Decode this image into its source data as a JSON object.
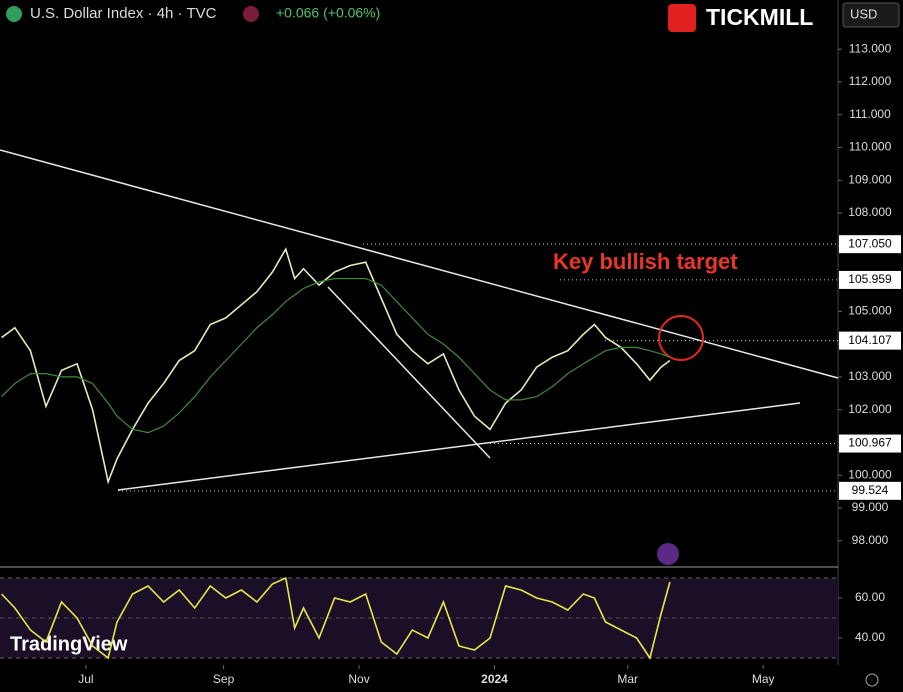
{
  "header": {
    "symbol": "U.S. Dollar Index · 4h · TVC",
    "change": "+0.066 (+0.06%)",
    "brand": "TICKMILL",
    "currency": "USD",
    "logo": "TradingView"
  },
  "chart_data": [
    {
      "type": "line",
      "annotation": "Key bullish target",
      "x": [
        -38,
        -32,
        -25,
        -18,
        -11,
        -4,
        3,
        10,
        14,
        21,
        28,
        35,
        42,
        49,
        56,
        63,
        70,
        77,
        84,
        90,
        94,
        98,
        105,
        112,
        119,
        126,
        133,
        140,
        147,
        154,
        161,
        168,
        175,
        182,
        189,
        196,
        203,
        210,
        217,
        224,
        229,
        234,
        241,
        248,
        254,
        259,
        263
      ],
      "series": [
        {
          "color": "#e2ecb4",
          "values": [
            104.2,
            104.5,
            103.8,
            102.1,
            103.2,
            103.4,
            102.0,
            99.8,
            100.5,
            101.4,
            102.2,
            102.8,
            103.5,
            103.8,
            104.6,
            104.8,
            105.2,
            105.6,
            106.2,
            106.9,
            106.0,
            106.3,
            105.8,
            106.2,
            106.4,
            106.5,
            105.4,
            104.3,
            103.8,
            103.4,
            103.7,
            102.6,
            101.8,
            101.4,
            102.2,
            102.6,
            103.3,
            103.6,
            103.8,
            104.3,
            104.6,
            104.2,
            103.9,
            103.4,
            102.9,
            103.3,
            103.5
          ]
        },
        {
          "color": "#3f8a3a",
          "values": [
            102.4,
            102.8,
            103.1,
            103.1,
            103.0,
            103.0,
            102.8,
            102.2,
            101.8,
            101.4,
            101.3,
            101.5,
            101.9,
            102.4,
            103.0,
            103.5,
            104.0,
            104.5,
            104.9,
            105.3,
            105.5,
            105.7,
            105.9,
            106.0,
            106.0,
            106.0,
            105.8,
            105.3,
            104.8,
            104.3,
            104.0,
            103.6,
            103.1,
            102.6,
            102.3,
            102.3,
            102.4,
            102.7,
            103.1,
            103.4,
            103.6,
            103.8,
            103.9,
            103.9,
            103.8,
            103.7,
            103.6
          ]
        }
      ],
      "levels": [
        {
          "value": 107.05,
          "label": "107.050"
        },
        {
          "value": 105.959,
          "label": "105.959"
        },
        {
          "value": 104.107,
          "label": "104.107"
        },
        {
          "value": 100.967,
          "label": "100.967"
        },
        {
          "value": 99.524,
          "label": "99.524"
        }
      ],
      "xlim": [
        -38.7,
        338.7
      ],
      "xticks": [
        {
          "value": 0,
          "label": "Jul"
        },
        {
          "value": 62,
          "label": "Sep"
        },
        {
          "value": 123,
          "label": "Nov"
        },
        {
          "value": 184,
          "label": "2024"
        },
        {
          "value": 244,
          "label": "Mar"
        },
        {
          "value": 305,
          "label": "May"
        }
      ],
      "ylim": [
        97.2,
        114.5
      ],
      "yticks": [
        {
          "value": 98,
          "label": "98.000"
        },
        {
          "value": 99,
          "label": "99.000"
        },
        {
          "value": 100,
          "label": "100.000"
        },
        {
          "value": 101,
          "label": "101.000"
        },
        {
          "value": 102,
          "label": "102.000"
        },
        {
          "value": 103,
          "label": "103.000"
        },
        {
          "value": 104,
          "label": "104.000"
        },
        {
          "value": 105,
          "label": "105.000"
        },
        {
          "value": 106,
          "label": "106.000"
        },
        {
          "value": 107,
          "label": "107.000"
        },
        {
          "value": 108,
          "label": "108.000"
        },
        {
          "value": 109,
          "label": "109.000"
        },
        {
          "value": 110,
          "label": "110.000"
        },
        {
          "value": 111,
          "label": "111.000"
        },
        {
          "value": 112,
          "label": "112.000"
        },
        {
          "value": 113,
          "label": "113.000"
        }
      ]
    },
    {
      "type": "line",
      "x": [
        -38,
        -32,
        -25,
        -18,
        -11,
        -4,
        3,
        10,
        14,
        21,
        28,
        35,
        42,
        49,
        56,
        63,
        70,
        77,
        84,
        90,
        94,
        98,
        105,
        112,
        119,
        126,
        133,
        140,
        147,
        154,
        161,
        168,
        175,
        182,
        189,
        196,
        203,
        210,
        217,
        224,
        229,
        234,
        241,
        248,
        254,
        259,
        263
      ],
      "series": [
        {
          "color": "#e6e64a",
          "values": [
            62,
            55,
            44,
            38,
            58,
            50,
            36,
            30,
            48,
            62,
            66,
            58,
            64,
            55,
            66,
            60,
            64,
            58,
            67,
            70,
            45,
            55,
            40,
            60,
            58,
            62,
            38,
            32,
            44,
            40,
            58,
            36,
            34,
            40,
            66,
            64,
            60,
            58,
            54,
            62,
            60,
            48,
            44,
            40,
            30,
            52,
            68
          ]
        }
      ],
      "xlim": [
        -38.7,
        338.7
      ],
      "ylim": [
        26.5,
        75.5
      ],
      "yticks": [
        {
          "value": 40,
          "label": "40.00"
        },
        {
          "value": 60,
          "label": "60.00"
        }
      ]
    }
  ]
}
